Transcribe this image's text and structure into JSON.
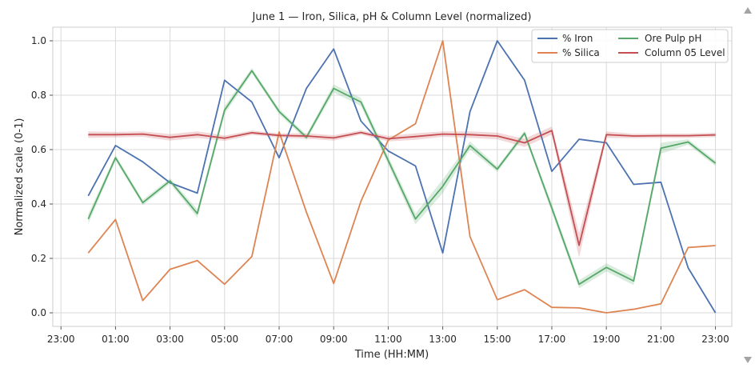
{
  "chart_data": {
    "type": "line",
    "title": "June 1 — Iron, Silica, pH & Column Level (normalized)",
    "xlabel": "Time (HH:MM)",
    "ylabel": "Normalized scale (0-1)",
    "xlim": [
      -1.3,
      23.6
    ],
    "ylim": [
      -0.05,
      1.05
    ],
    "x_ticks": [
      -1,
      1,
      3,
      5,
      7,
      9,
      11,
      13,
      15,
      17,
      19,
      21,
      23
    ],
    "x_tick_labels": [
      "23:00",
      "01:00",
      "03:00",
      "05:00",
      "07:00",
      "09:00",
      "11:00",
      "13:00",
      "15:00",
      "17:00",
      "19:00",
      "21:00",
      "23:00"
    ],
    "y_ticks": [
      0.0,
      0.2,
      0.4,
      0.6,
      0.8,
      1.0
    ],
    "y_tick_labels": [
      "0.0",
      "0.2",
      "0.4",
      "0.6",
      "0.8",
      "1.0"
    ],
    "x": [
      0,
      1,
      2,
      3,
      4,
      5,
      6,
      7,
      8,
      9,
      10,
      11,
      12,
      13,
      14,
      15,
      16,
      17,
      18,
      19,
      20,
      21,
      22,
      23
    ],
    "series": [
      {
        "name": "% Iron",
        "color": "#4c72b0",
        "values": [
          0.43,
          0.615,
          0.555,
          0.478,
          0.44,
          0.855,
          0.775,
          0.57,
          0.825,
          0.97,
          0.705,
          0.595,
          0.54,
          0.22,
          0.74,
          1.0,
          0.855,
          0.52,
          0.638,
          0.625,
          0.472,
          0.48,
          0.165,
          0.0
        ]
      },
      {
        "name": "% Silica",
        "color": "#dd8452",
        "values": [
          0.22,
          0.343,
          0.045,
          0.16,
          0.192,
          0.105,
          0.207,
          0.665,
          0.37,
          0.108,
          0.41,
          0.635,
          0.695,
          1.0,
          0.28,
          0.048,
          0.085,
          0.02,
          0.018,
          0.0,
          0.013,
          0.033,
          0.24,
          0.247
        ]
      },
      {
        "name": "Ore Pulp pH",
        "color": "#55a868",
        "values": [
          0.345,
          0.57,
          0.405,
          0.485,
          0.365,
          0.745,
          0.89,
          0.74,
          0.645,
          0.825,
          0.775,
          0.56,
          0.345,
          0.465,
          0.615,
          0.528,
          0.66,
          0.385,
          0.105,
          0.167,
          0.117,
          0.605,
          0.628,
          0.55
        ],
        "band": [
          0.018,
          0.01,
          0.01,
          0.01,
          0.015,
          0.015,
          0.01,
          0.01,
          0.01,
          0.015,
          0.015,
          0.015,
          0.02,
          0.025,
          0.015,
          0.01,
          0.01,
          0.015,
          0.015,
          0.015,
          0.015,
          0.02,
          0.01,
          0.01
        ]
      },
      {
        "name": "Column 05 Level",
        "color": "#c44e52",
        "values": [
          0.655,
          0.655,
          0.657,
          0.645,
          0.655,
          0.642,
          0.662,
          0.652,
          0.65,
          0.643,
          0.663,
          0.64,
          0.648,
          0.657,
          0.655,
          0.65,
          0.625,
          0.67,
          0.248,
          0.655,
          0.65,
          0.651,
          0.651,
          0.654
        ],
        "band": [
          0.012,
          0.01,
          0.01,
          0.012,
          0.012,
          0.01,
          0.008,
          0.008,
          0.01,
          0.01,
          0.008,
          0.01,
          0.012,
          0.01,
          0.012,
          0.012,
          0.015,
          0.015,
          0.045,
          0.012,
          0.008,
          0.008,
          0.008,
          0.008
        ]
      }
    ],
    "legend": {
      "position": "upper-right",
      "columns": 2,
      "entries": [
        "% Iron",
        "% Silica",
        "Ore Pulp pH",
        "Column 05 Level"
      ]
    },
    "grid": true
  },
  "scrollbar": {
    "up_icon": "triangle-up-icon",
    "down_icon": "triangle-down-icon"
  }
}
